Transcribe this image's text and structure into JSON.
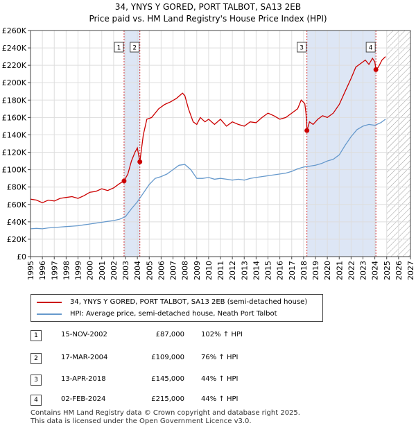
{
  "title": {
    "line1": "34, YNYS Y GORED, PORT TALBOT, SA13 2EB",
    "line2": "Price paid vs. HM Land Registry's House Price Index (HPI)"
  },
  "chart_data": {
    "type": "line",
    "title": "34, YNYS Y GORED, PORT TALBOT, SA13 2EB",
    "subtitle": "Price paid vs. HM Land Registry's House Price Index (HPI)",
    "xlim": [
      1995,
      2027
    ],
    "ylim": [
      0,
      260000
    ],
    "x_ticks": [
      1995,
      1996,
      1997,
      1998,
      1999,
      2000,
      2001,
      2002,
      2003,
      2004,
      2005,
      2006,
      2007,
      2008,
      2009,
      2010,
      2011,
      2012,
      2013,
      2014,
      2015,
      2016,
      2017,
      2018,
      2019,
      2020,
      2021,
      2022,
      2023,
      2024,
      2025,
      2026,
      2027
    ],
    "y_ticks": [
      {
        "value": 0,
        "label": "£0"
      },
      {
        "value": 20000,
        "label": "£20K"
      },
      {
        "value": 40000,
        "label": "£40K"
      },
      {
        "value": 60000,
        "label": "£60K"
      },
      {
        "value": 80000,
        "label": "£80K"
      },
      {
        "value": 100000,
        "label": "£100K"
      },
      {
        "value": 120000,
        "label": "£120K"
      },
      {
        "value": 140000,
        "label": "£140K"
      },
      {
        "value": 160000,
        "label": "£160K"
      },
      {
        "value": 180000,
        "label": "£180K"
      },
      {
        "value": 200000,
        "label": "£200K"
      },
      {
        "value": 220000,
        "label": "£220K"
      },
      {
        "value": 240000,
        "label": "£240K"
      },
      {
        "value": 260000,
        "label": "£260K"
      }
    ],
    "grid": true,
    "hatch_from": 2025.0,
    "shaded_periods": [
      [
        2002.88,
        2004.21
      ],
      [
        2018.28,
        2024.09
      ]
    ],
    "series": [
      {
        "name": "34, YNYS Y GORED, PORT TALBOT, SA13 2EB (semi-detached house)",
        "color": "#cc0000",
        "x": [
          1995.0,
          1995.5,
          1996.0,
          1996.5,
          1997.0,
          1997.5,
          1998.0,
          1998.5,
          1999.0,
          1999.5,
          2000.0,
          2000.5,
          2001.0,
          2001.5,
          2002.0,
          2002.5,
          2002.88,
          2003.2,
          2003.5,
          2003.8,
          2004.0,
          2004.21,
          2004.5,
          2004.8,
          2005.2,
          2005.8,
          2006.3,
          2006.8,
          2007.3,
          2007.8,
          2008.0,
          2008.3,
          2008.7,
          2009.0,
          2009.3,
          2009.7,
          2010.0,
          2010.5,
          2011.0,
          2011.5,
          2012.0,
          2012.5,
          2013.0,
          2013.5,
          2014.0,
          2014.5,
          2015.0,
          2015.5,
          2016.0,
          2016.5,
          2017.0,
          2017.5,
          2017.8,
          2018.1,
          2018.2,
          2018.28,
          2018.5,
          2018.8,
          2019.2,
          2019.6,
          2020.0,
          2020.5,
          2021.0,
          2021.5,
          2022.0,
          2022.4,
          2022.8,
          2023.2,
          2023.5,
          2023.8,
          2024.0,
          2024.09,
          2024.3,
          2024.6,
          2024.9
        ],
        "y": [
          66000,
          65000,
          62000,
          65000,
          64000,
          67000,
          68000,
          69000,
          67000,
          70000,
          74000,
          75000,
          78000,
          76000,
          79000,
          84000,
          87000,
          95000,
          110000,
          120000,
          125000,
          109000,
          140000,
          158000,
          160000,
          170000,
          175000,
          178000,
          182000,
          188000,
          185000,
          170000,
          155000,
          152000,
          160000,
          155000,
          158000,
          152000,
          158000,
          150000,
          155000,
          152000,
          150000,
          155000,
          154000,
          160000,
          165000,
          162000,
          158000,
          160000,
          165000,
          170000,
          180000,
          176000,
          165000,
          145000,
          155000,
          152000,
          158000,
          162000,
          160000,
          165000,
          175000,
          190000,
          205000,
          218000,
          222000,
          226000,
          221000,
          228000,
          224000,
          215000,
          218000,
          226000,
          230000
        ]
      },
      {
        "name": "HPI: Average price, semi-detached house, Neath Port Talbot",
        "color": "#6699cc",
        "x": [
          1995.0,
          1995.5,
          1996.0,
          1996.5,
          1997.0,
          1997.5,
          1998.0,
          1998.5,
          1999.0,
          1999.5,
          2000.0,
          2000.5,
          2001.0,
          2001.5,
          2002.0,
          2002.5,
          2003.0,
          2003.5,
          2004.0,
          2004.5,
          2005.0,
          2005.5,
          2006.0,
          2006.5,
          2007.0,
          2007.5,
          2008.0,
          2008.5,
          2009.0,
          2009.5,
          2010.0,
          2010.5,
          2011.0,
          2011.5,
          2012.0,
          2012.5,
          2013.0,
          2013.5,
          2014.0,
          2014.5,
          2015.0,
          2015.5,
          2016.0,
          2016.5,
          2017.0,
          2017.5,
          2018.0,
          2018.5,
          2019.0,
          2019.5,
          2020.0,
          2020.5,
          2021.0,
          2021.5,
          2022.0,
          2022.5,
          2023.0,
          2023.5,
          2024.0,
          2024.5,
          2024.9
        ],
        "y": [
          32000,
          32500,
          32000,
          33000,
          33500,
          34000,
          34500,
          35000,
          35500,
          36500,
          37500,
          38500,
          39500,
          40500,
          41500,
          43000,
          46000,
          55000,
          63000,
          73000,
          83000,
          90000,
          92000,
          95000,
          100000,
          105000,
          106000,
          100000,
          90000,
          90000,
          91000,
          89000,
          90000,
          89000,
          88000,
          89000,
          88000,
          90000,
          91000,
          92000,
          93000,
          94000,
          95000,
          96000,
          98000,
          101000,
          103000,
          104000,
          105000,
          107000,
          110000,
          112000,
          117000,
          128000,
          138000,
          146000,
          150000,
          152000,
          151000,
          154000,
          158000
        ]
      }
    ],
    "transactions": [
      {
        "id": "1",
        "x": 2002.88,
        "y": 87000
      },
      {
        "id": "2",
        "x": 2004.21,
        "y": 109000
      },
      {
        "id": "3",
        "x": 2018.28,
        "y": 145000
      },
      {
        "id": "4",
        "x": 2024.09,
        "y": 215000
      }
    ],
    "marker_color": "#cc0000",
    "shade_color": "#dde6f5"
  },
  "legend": {
    "items": [
      {
        "label": "34, YNYS Y GORED, PORT TALBOT, SA13 2EB (semi-detached house)",
        "color": "#cc0000"
      },
      {
        "label": "HPI: Average price, semi-detached house, Neath Port Talbot",
        "color": "#6699cc"
      }
    ]
  },
  "table": {
    "rows": [
      {
        "num": "1",
        "date": "15-NOV-2002",
        "price": "£87,000",
        "hpi": "102% ↑ HPI"
      },
      {
        "num": "2",
        "date": "17-MAR-2004",
        "price": "£109,000",
        "hpi": "76% ↑ HPI"
      },
      {
        "num": "3",
        "date": "13-APR-2018",
        "price": "£145,000",
        "hpi": "44% ↑ HPI"
      },
      {
        "num": "4",
        "date": "02-FEB-2024",
        "price": "£215,000",
        "hpi": "44% ↑ HPI"
      }
    ]
  },
  "footer": {
    "line1": "Contains HM Land Registry data © Crown copyright and database right 2025.",
    "line2": "This data is licensed under the Open Government Licence v3.0."
  }
}
